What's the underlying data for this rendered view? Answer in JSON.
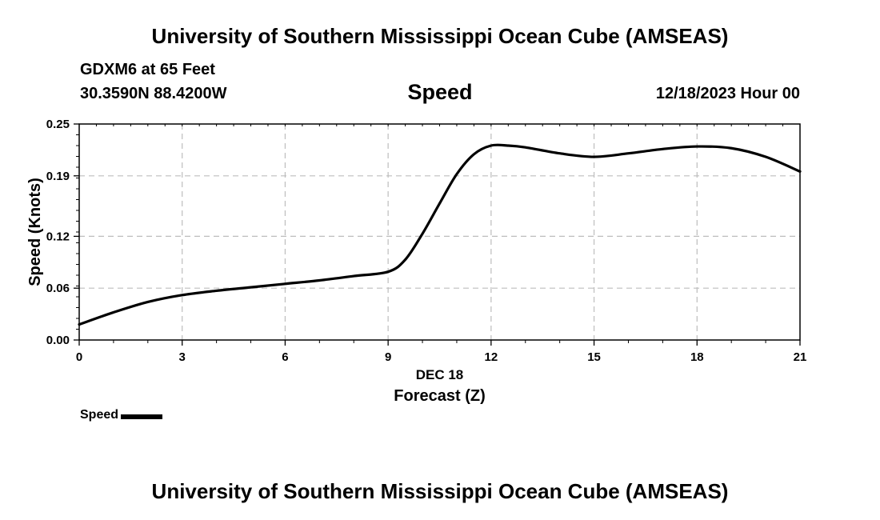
{
  "header": {
    "main_title": "University of Southern Mississippi Ocean Cube (AMSEAS)",
    "station": "GDXM6 at 65 Feet",
    "coords": "30.3590N  88.4200W",
    "datetime": "12/18/2023 Hour 00"
  },
  "footer": {
    "title": "University of Southern Mississippi Ocean Cube (AMSEAS)"
  },
  "chart_data": {
    "type": "line",
    "title": "Speed",
    "xlabel": "Forecast (Z)",
    "xlabel_date": "DEC 18",
    "ylabel": "Speed (Knots)",
    "xlim": [
      0,
      21
    ],
    "ylim": [
      0,
      0.25
    ],
    "xticks": [
      0,
      3,
      6,
      9,
      12,
      15,
      18,
      21
    ],
    "yticks": [
      0.0,
      0.06,
      0.12,
      0.19,
      0.25
    ],
    "ytick_labels": [
      "0.00",
      "0.06",
      "0.12",
      "0.19",
      "0.25"
    ],
    "grid": true,
    "legend": "bottom-left",
    "series": [
      {
        "name": "Speed",
        "color": "#000000",
        "x": [
          0,
          1,
          2,
          3,
          4,
          5,
          6,
          7,
          8,
          9,
          9.5,
          10,
          10.5,
          11,
          11.5,
          12,
          12.5,
          13,
          14,
          15,
          16,
          17,
          18,
          19,
          20,
          21
        ],
        "y": [
          0.018,
          0.032,
          0.044,
          0.052,
          0.057,
          0.061,
          0.065,
          0.069,
          0.074,
          0.079,
          0.093,
          0.123,
          0.158,
          0.192,
          0.215,
          0.225,
          0.225,
          0.223,
          0.216,
          0.212,
          0.216,
          0.221,
          0.224,
          0.222,
          0.212,
          0.195
        ]
      }
    ]
  }
}
